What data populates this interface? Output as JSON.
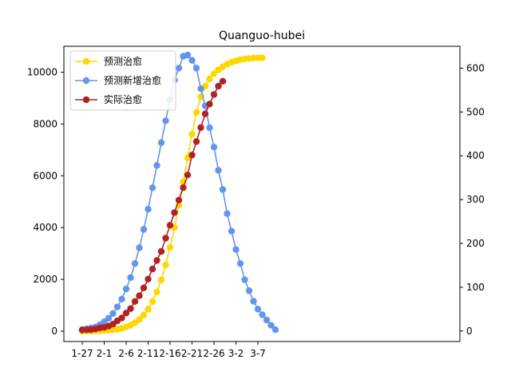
{
  "chart_data": {
    "type": "line",
    "title": "Quanguo-hubei",
    "xlabel": "",
    "ylabel": "",
    "x_tick_labels": [
      "1-27",
      "2-1",
      "2-6",
      "2-11",
      "2-16",
      "2-21",
      "2-26",
      "3-2",
      "3-7"
    ],
    "left_axis": {
      "ylim": [
        -400,
        11000
      ],
      "ticks": [
        0,
        2000,
        4000,
        6000,
        8000,
        10000
      ]
    },
    "right_axis": {
      "ylim": [
        -24,
        650
      ],
      "ticks": [
        0,
        100,
        200,
        300,
        400,
        500,
        600
      ]
    },
    "legend": {
      "placement": "top-left",
      "entries": [
        "预测治愈",
        "预测新增治愈",
        "实际治愈"
      ]
    },
    "series": [
      {
        "name": "预测治愈",
        "axis": "left",
        "color": "#FFD700",
        "start_day": 0,
        "values": [
          1,
          3,
          6,
          10,
          16,
          24,
          36,
          53,
          77,
          112,
          161,
          229,
          323,
          450,
          620,
          847,
          1140,
          1516,
          1986,
          2557,
          3232,
          4004,
          4858,
          5768,
          6694,
          7604,
          8444,
          9050,
          9460,
          9740,
          9940,
          10090,
          10210,
          10310,
          10380,
          10440,
          10480,
          10510,
          10530,
          10545,
          10552,
          10556
        ]
      },
      {
        "name": "预测新增治愈",
        "axis": "right",
        "color": "#6495ED",
        "start_day": 0,
        "values": [
          3,
          5,
          7,
          9,
          14,
          21,
          29,
          40,
          55,
          73,
          96,
          122,
          154,
          190,
          232,
          278,
          327,
          378,
          430,
          480,
          528,
          573,
          600,
          627,
          630,
          618,
          600,
          553,
          514,
          464,
          420,
          367,
          323,
          268,
          228,
          186,
          154,
          117,
          92,
          68,
          50,
          37,
          25,
          13,
          3
        ]
      },
      {
        "name": "实际治愈",
        "axis": "left",
        "color": "#B22222",
        "start_day": 0,
        "values": [
          47,
          52,
          59,
          85,
          128,
          145,
          195,
          273,
          398,
          510,
          700,
          870,
          1146,
          1370,
          1670,
          2010,
          2400,
          2730,
          3080,
          3590,
          4090,
          4580,
          5060,
          5540,
          6030,
          6800,
          7320,
          7860,
          8390,
          8770,
          9140,
          9460,
          9650
        ]
      }
    ]
  }
}
